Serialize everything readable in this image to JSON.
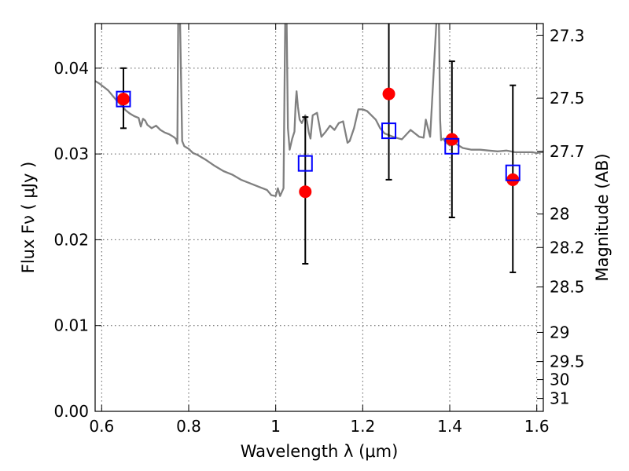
{
  "chart_data": {
    "type": "scatter",
    "xlabel": "Wavelength  λ (μm)",
    "ylabel": "Flux  Fν ( μJy )",
    "y2label": "Magnitude (AB)",
    "xlim": [
      0.585,
      1.615
    ],
    "ylim": [
      0.0,
      0.0452
    ],
    "x_ticks": [
      0.6,
      0.8,
      1.0,
      1.2,
      1.4,
      1.6
    ],
    "x_tick_labels": [
      "0.6",
      "0.8",
      "1",
      "1.2",
      "1.4",
      "1.6"
    ],
    "y_ticks": [
      0.0,
      0.01,
      0.02,
      0.03,
      0.04
    ],
    "y_tick_labels": [
      "0.00",
      "0.01",
      "0.02",
      "0.03",
      "0.04"
    ],
    "y2_ticks": [
      {
        "label": "27.3",
        "flux": 0.0438
      },
      {
        "label": "27.5",
        "flux": 0.0365
      },
      {
        "label": "27.7",
        "flux": 0.0303
      },
      {
        "label": "28",
        "flux": 0.023
      },
      {
        "label": "28.2",
        "flux": 0.0191
      },
      {
        "label": "28.5",
        "flux": 0.0145
      },
      {
        "label": "29",
        "flux": 0.0092
      },
      {
        "label": "29.5",
        "flux": 0.0058
      },
      {
        "label": "30",
        "flux": 0.0037
      },
      {
        "label": "31",
        "flux": 0.0015
      }
    ],
    "grid": true,
    "colors": {
      "observed": "#ff0000",
      "model": "#0000ff",
      "spectrum": "#808080",
      "errorbar": "#000000"
    },
    "series": [
      {
        "kind": "line",
        "x": [
          0.585,
          0.595,
          0.605,
          0.615,
          0.625,
          0.635,
          0.645,
          0.655,
          0.665,
          0.675,
          0.685,
          0.69,
          0.695,
          0.7,
          0.705,
          0.715,
          0.725,
          0.735,
          0.745,
          0.755,
          0.765,
          0.77,
          0.774,
          0.776,
          0.78,
          0.785,
          0.79,
          0.8,
          0.81,
          0.82,
          0.84,
          0.86,
          0.88,
          0.9,
          0.92,
          0.94,
          0.96,
          0.98,
          0.99,
          1.0,
          1.005,
          1.01,
          1.018,
          1.022,
          1.025,
          1.028,
          1.032,
          1.038,
          1.043,
          1.046,
          1.048,
          1.051,
          1.055,
          1.06,
          1.068,
          1.072,
          1.076,
          1.08,
          1.085,
          1.095,
          1.105,
          1.115,
          1.125,
          1.135,
          1.145,
          1.155,
          1.165,
          1.17,
          1.18,
          1.19,
          1.2,
          1.21,
          1.22,
          1.23,
          1.24,
          1.25,
          1.27,
          1.29,
          1.31,
          1.33,
          1.34,
          1.345,
          1.355,
          1.37,
          1.375,
          1.378,
          1.38,
          1.385,
          1.39,
          1.4,
          1.41,
          1.43,
          1.45,
          1.47,
          1.49,
          1.51,
          1.53,
          1.55,
          1.57,
          1.59,
          1.6,
          1.61,
          1.615
        ],
        "y": [
          0.0385,
          0.0382,
          0.0378,
          0.0374,
          0.0368,
          0.0362,
          0.0357,
          0.0351,
          0.0347,
          0.0344,
          0.0342,
          0.0332,
          0.0341,
          0.0339,
          0.0334,
          0.033,
          0.0333,
          0.0328,
          0.0325,
          0.0323,
          0.032,
          0.0318,
          0.0312,
          0.046,
          0.046,
          0.0315,
          0.0309,
          0.0306,
          0.0301,
          0.0299,
          0.0293,
          0.0286,
          0.028,
          0.0276,
          0.027,
          0.0266,
          0.0262,
          0.0258,
          0.0252,
          0.0251,
          0.026,
          0.0251,
          0.026,
          0.046,
          0.046,
          0.033,
          0.0305,
          0.0318,
          0.0326,
          0.036,
          0.0373,
          0.0355,
          0.034,
          0.0336,
          0.0345,
          0.0338,
          0.0325,
          0.0318,
          0.0345,
          0.0348,
          0.032,
          0.0326,
          0.0333,
          0.0328,
          0.0336,
          0.0338,
          0.0313,
          0.0315,
          0.033,
          0.0352,
          0.0352,
          0.035,
          0.0345,
          0.034,
          0.033,
          0.0324,
          0.032,
          0.0317,
          0.0328,
          0.032,
          0.0319,
          0.034,
          0.032,
          0.046,
          0.046,
          0.034,
          0.0316,
          0.0318,
          0.0314,
          0.031,
          0.0313,
          0.0307,
          0.0305,
          0.0305,
          0.0304,
          0.0303,
          0.0304,
          0.0302,
          0.0302,
          0.0302,
          0.0301,
          0.0302,
          0.0302
        ]
      },
      {
        "kind": "observed",
        "x": [
          0.65,
          1.068,
          1.26,
          1.405,
          1.545
        ],
        "y": [
          0.0364,
          0.0256,
          0.037,
          0.0317,
          0.027
        ],
        "yerr_low": [
          0.033,
          0.0172,
          0.027,
          0.0226,
          0.0162
        ],
        "yerr_high": [
          0.04,
          0.0343,
          0.0462,
          0.0408,
          0.038
        ]
      },
      {
        "kind": "model",
        "x": [
          0.65,
          1.068,
          1.26,
          1.405,
          1.545
        ],
        "y": [
          0.0364,
          0.0289,
          0.0327,
          0.0309,
          0.0278
        ]
      }
    ]
  }
}
